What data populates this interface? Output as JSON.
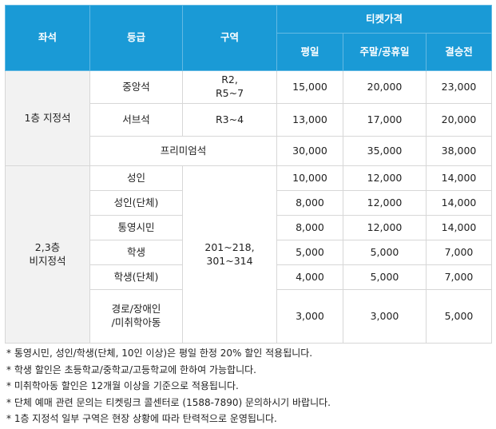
{
  "header": {
    "seat": "좌석",
    "grade": "등급",
    "zone": "구역",
    "price_group": "티켓가격",
    "weekday": "평일",
    "weekend": "주말/공휴일",
    "final": "결승전"
  },
  "floor1": {
    "label": "1층 지정석",
    "rows": [
      {
        "grade": "중앙석",
        "zone": "R2,\nR5~7",
        "weekday": "15,000",
        "weekend": "20,000",
        "final": "23,000"
      },
      {
        "grade": "서브석",
        "zone": "R3~4",
        "weekday": "13,000",
        "weekend": "17,000",
        "final": "20,000"
      },
      {
        "grade": "프리미엄석",
        "weekday": "30,000",
        "weekend": "35,000",
        "final": "38,000"
      }
    ]
  },
  "floor23": {
    "label": "2,3층\n비지정석",
    "zone": "201~218,\n301~314",
    "rows": [
      {
        "grade": "성인",
        "weekday": "10,000",
        "weekend": "12,000",
        "final": "14,000"
      },
      {
        "grade": "성인(단체)",
        "weekday": "8,000",
        "weekend": "12,000",
        "final": "14,000"
      },
      {
        "grade": "통영시민",
        "weekday": "8,000",
        "weekend": "12,000",
        "final": "14,000"
      },
      {
        "grade": "학생",
        "weekday": "5,000",
        "weekend": "5,000",
        "final": "7,000"
      },
      {
        "grade": "학생(단체)",
        "weekday": "4,000",
        "weekend": "5,000",
        "final": "7,000"
      },
      {
        "grade": "경로/장애인\n/미취학아동",
        "weekday": "3,000",
        "weekend": "3,000",
        "final": "5,000"
      }
    ]
  },
  "notes": [
    "* 통영시민, 성인/학생(단체, 10인 이상)은 평일 한정 20% 할인 적용됩니다.",
    "* 학생 할인은 초등학교/중학교/고등학교에 한하여 가능합니다.",
    "* 미취학아동 할인은 12개월 이상을 기준으로 적용됩니다.",
    "* 단체 예매 관련 문의는 티켓링크 콜센터로 (1588-7890) 문의하시기 바랍니다.",
    "* 1층 지정석 일부 구역은 현장 상황에 따라 탄력적으로 운영됩니다."
  ]
}
